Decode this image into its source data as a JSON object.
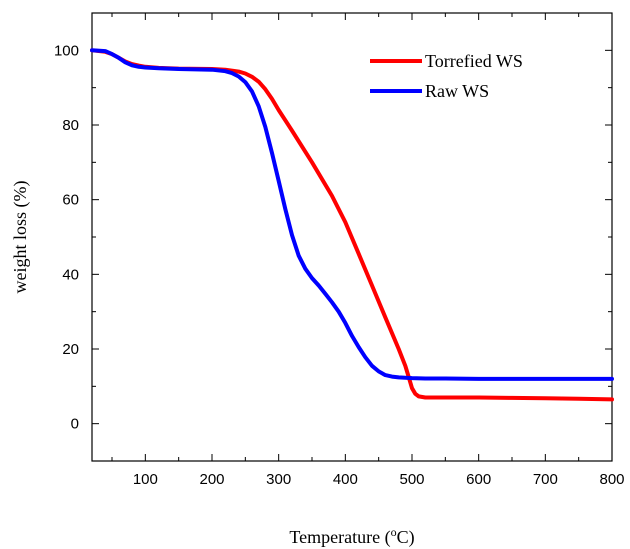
{
  "chart_data": {
    "type": "line",
    "xlabel_main": "Temperature (",
    "xlabel_sup": "o",
    "xlabel_end": "C)",
    "ylabel": "weight loss (%)",
    "xlim": [
      20,
      800
    ],
    "ylim": [
      -10,
      110
    ],
    "xticks": [
      100,
      200,
      300,
      400,
      500,
      600,
      700,
      800
    ],
    "yticks": [
      0,
      20,
      40,
      60,
      80,
      100
    ],
    "grid": false,
    "legend_position": "top-right",
    "series": [
      {
        "name": "Torrefied WS",
        "color": "#ff0000",
        "x": [
          20,
          40,
          50,
          60,
          70,
          80,
          90,
          100,
          120,
          150,
          200,
          220,
          240,
          250,
          260,
          270,
          280,
          290,
          300,
          320,
          350,
          380,
          400,
          420,
          440,
          460,
          480,
          490,
          495,
          500,
          505,
          510,
          520,
          540,
          600,
          650,
          700,
          750,
          800
        ],
        "y": [
          100,
          99.6,
          99,
          98,
          97,
          96.3,
          95.9,
          95.6,
          95.3,
          95.1,
          95,
          94.8,
          94.3,
          93.8,
          92.9,
          91.6,
          89.6,
          87,
          84,
          78.5,
          70,
          61,
          54,
          45.5,
          37,
          28.5,
          20,
          15.5,
          12.5,
          9.5,
          8,
          7.3,
          7,
          7,
          7,
          6.9,
          6.8,
          6.7,
          6.5
        ]
      },
      {
        "name": "Raw WS",
        "color": "#0000ff",
        "x": [
          20,
          40,
          50,
          60,
          70,
          80,
          90,
          100,
          120,
          150,
          200,
          220,
          230,
          240,
          250,
          260,
          270,
          280,
          290,
          300,
          310,
          320,
          330,
          340,
          350,
          360,
          370,
          380,
          390,
          400,
          410,
          420,
          430,
          440,
          450,
          460,
          470,
          480,
          490,
          500,
          520,
          550,
          600,
          650,
          700,
          750,
          800
        ],
        "y": [
          100,
          99.8,
          99,
          98,
          96.8,
          96,
          95.6,
          95.4,
          95.2,
          95,
          94.8,
          94.4,
          93.9,
          93,
          91.5,
          89,
          85,
          79.5,
          72.5,
          65,
          57.5,
          50.5,
          45,
          41.5,
          39,
          37,
          34.8,
          32.5,
          30,
          27,
          23.5,
          20.5,
          17.8,
          15.5,
          14,
          13,
          12.6,
          12.4,
          12.3,
          12.2,
          12.1,
          12.1,
          12,
          12,
          12,
          12,
          12
        ]
      }
    ]
  }
}
